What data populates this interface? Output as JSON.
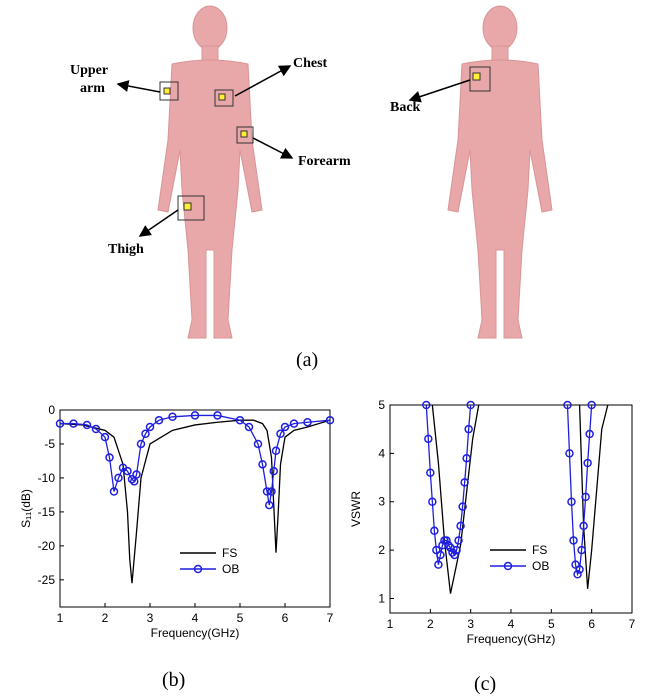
{
  "panel_a": {
    "labels": {
      "upper": "Upper",
      "arm": "arm",
      "chest": "Chest",
      "forearm": "Forearm",
      "thigh": "Thigh",
      "back": "Back"
    },
    "caption": "(a)"
  },
  "chart_data": [
    {
      "type": "line",
      "caption": "(b)",
      "xlabel": "Frequency(GHz)",
      "ylabel": "S₁₁(dB)",
      "xlim": [
        1,
        7
      ],
      "xticks": [
        1,
        2,
        3,
        4,
        5,
        6,
        7
      ],
      "ylim": [
        -29,
        0
      ],
      "yticks": [
        0,
        -5,
        -10,
        -15,
        -20,
        -25
      ],
      "series": [
        {
          "name": "FS",
          "color": "#000000",
          "marker": false,
          "x": [
            1,
            1.5,
            2,
            2.2,
            2.4,
            2.5,
            2.55,
            2.6,
            2.7,
            2.8,
            3,
            3.5,
            4,
            4.5,
            5,
            5.3,
            5.5,
            5.6,
            5.7,
            5.75,
            5.8,
            5.85,
            5.9,
            6,
            6.2,
            6.5,
            7
          ],
          "values": [
            -2,
            -2.2,
            -3,
            -4,
            -8,
            -15,
            -22,
            -25.5,
            -18,
            -10,
            -5,
            -3,
            -2.2,
            -1.8,
            -1.5,
            -1.5,
            -2,
            -3,
            -7,
            -14,
            -21,
            -15,
            -8,
            -4,
            -3,
            -2.5,
            -1.5
          ]
        },
        {
          "name": "OB",
          "color": "#1f1fe0",
          "marker": true,
          "x": [
            1,
            1.3,
            1.6,
            1.8,
            2,
            2.1,
            2.2,
            2.3,
            2.4,
            2.5,
            2.6,
            2.65,
            2.7,
            2.8,
            2.9,
            3,
            3.2,
            3.5,
            4,
            4.5,
            5,
            5.2,
            5.4,
            5.5,
            5.6,
            5.65,
            5.7,
            5.75,
            5.8,
            5.9,
            6,
            6.2,
            6.5,
            7
          ],
          "values": [
            -2,
            -2,
            -2.2,
            -2.8,
            -4,
            -7,
            -12,
            -10,
            -8.5,
            -9,
            -10.2,
            -10.5,
            -9.5,
            -5,
            -3.5,
            -2.5,
            -1.5,
            -1,
            -0.8,
            -0.8,
            -1.5,
            -2.5,
            -5,
            -8,
            -12,
            -14,
            -12,
            -9,
            -6,
            -3.5,
            -2.5,
            -2,
            -1.8,
            -1.5
          ]
        }
      ]
    },
    {
      "type": "line",
      "caption": "(c)",
      "xlabel": "Frequency(GHz)",
      "ylabel": "VSWR",
      "xlim": [
        1,
        7
      ],
      "xticks": [
        1,
        2,
        3,
        4,
        5,
        6,
        7
      ],
      "ylim": [
        0.7,
        5
      ],
      "yticks": [
        1,
        2,
        3,
        4,
        5
      ],
      "series": [
        {
          "name": "FS",
          "color": "#000000",
          "marker": false,
          "x": [
            2.05,
            2.2,
            2.35,
            2.5,
            2.6,
            2.75,
            2.9,
            3.05,
            3.2,
            4,
            5.7,
            5.8,
            5.9,
            6,
            6.1,
            6.25,
            6.4
          ],
          "values": [
            5,
            3.8,
            2.2,
            1.1,
            1.5,
            2.1,
            3.2,
            4.3,
            5,
            null,
            5,
            2.5,
            1.2,
            2,
            3,
            4.5,
            5
          ]
        },
        {
          "name": "OB",
          "color": "#1f1fe0",
          "marker": true,
          "x": [
            1.9,
            1.95,
            2,
            2.05,
            2.1,
            2.15,
            2.2,
            2.25,
            2.3,
            2.35,
            2.4,
            2.45,
            2.5,
            2.55,
            2.6,
            2.65,
            2.7,
            2.75,
            2.8,
            2.85,
            2.9,
            2.95,
            3,
            4,
            5.4,
            5.45,
            5.5,
            5.55,
            5.6,
            5.65,
            5.7,
            5.75,
            5.8,
            5.85,
            5.9,
            5.95,
            6
          ],
          "values": [
            5,
            4.3,
            3.6,
            3,
            2.4,
            2,
            1.7,
            1.9,
            2.1,
            2.2,
            2.2,
            2.1,
            2.05,
            1.95,
            1.9,
            2,
            2.2,
            2.5,
            2.9,
            3.4,
            3.9,
            4.5,
            5,
            null,
            5,
            4,
            3,
            2.2,
            1.7,
            1.5,
            1.6,
            2,
            2.5,
            3.1,
            3.8,
            4.4,
            5
          ]
        }
      ]
    }
  ]
}
